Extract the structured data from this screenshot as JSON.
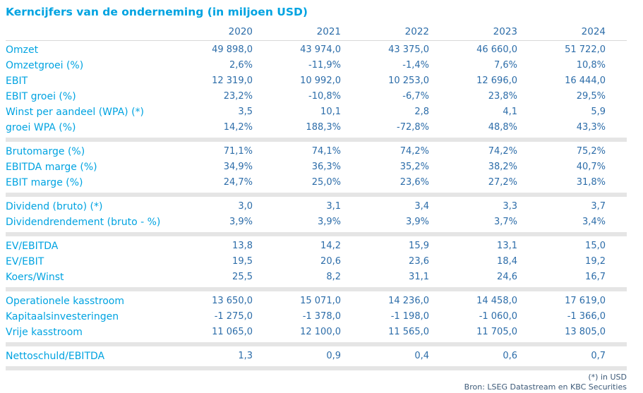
{
  "title": "Kerncijfers van de onderneming (in miljoen USD)",
  "colors": {
    "accent_cyan": "#00a3e1",
    "value_blue": "#2d6da9",
    "separator_gray": "#e5e5e5",
    "header_line_gray": "#d8d8d8",
    "footer_blue": "#3d5a78"
  },
  "table": {
    "type": "table",
    "years": [
      "2020",
      "2021",
      "2022",
      "2023",
      "2024"
    ],
    "sections": [
      {
        "rows": [
          {
            "label": "Omzet",
            "values": [
              "49 898,0",
              "43 974,0",
              "43 375,0",
              "46 660,0",
              "51 722,0"
            ]
          },
          {
            "label": "Omzetgroei (%)",
            "values": [
              "2,6%",
              "-11,9%",
              "-1,4%",
              "7,6%",
              "10,8%"
            ]
          },
          {
            "label": "EBIT",
            "values": [
              "12 319,0",
              "10 992,0",
              "10 253,0",
              "12 696,0",
              "16 444,0"
            ]
          },
          {
            "label": "EBIT groei (%)",
            "values": [
              "23,2%",
              "-10,8%",
              "-6,7%",
              "23,8%",
              "29,5%"
            ]
          },
          {
            "label": "Winst per aandeel (WPA) (*)",
            "values": [
              "3,5",
              "10,1",
              "2,8",
              "4,1",
              "5,9"
            ]
          },
          {
            "label": "groei WPA (%)",
            "values": [
              "14,2%",
              "188,3%",
              "-72,8%",
              "48,8%",
              "43,3%"
            ]
          }
        ]
      },
      {
        "rows": [
          {
            "label": "Brutomarge (%)",
            "values": [
              "71,1%",
              "74,1%",
              "74,2%",
              "74,2%",
              "75,2%"
            ]
          },
          {
            "label": "EBITDA marge (%)",
            "values": [
              "34,9%",
              "36,3%",
              "35,2%",
              "38,2%",
              "40,7%"
            ]
          },
          {
            "label": "EBIT marge (%)",
            "values": [
              "24,7%",
              "25,0%",
              "23,6%",
              "27,2%",
              "31,8%"
            ]
          }
        ]
      },
      {
        "rows": [
          {
            "label": "Dividend (bruto) (*)",
            "values": [
              "3,0",
              "3,1",
              "3,4",
              "3,3",
              "3,7"
            ]
          },
          {
            "label": "Dividendrendement (bruto - %)",
            "values": [
              "3,9%",
              "3,9%",
              "3,9%",
              "3,7%",
              "3,4%"
            ]
          }
        ]
      },
      {
        "rows": [
          {
            "label": "EV/EBITDA",
            "values": [
              "13,8",
              "14,2",
              "15,9",
              "13,1",
              "15,0"
            ]
          },
          {
            "label": "EV/EBIT",
            "values": [
              "19,5",
              "20,6",
              "23,6",
              "18,4",
              "19,2"
            ]
          },
          {
            "label": "Koers/Winst",
            "values": [
              "25,5",
              "8,2",
              "31,1",
              "24,6",
              "16,7"
            ]
          }
        ]
      },
      {
        "rows": [
          {
            "label": "Operationele kasstroom",
            "values": [
              "13 650,0",
              "15 071,0",
              "14 236,0",
              "14 458,0",
              "17 619,0"
            ]
          },
          {
            "label": "Kapitaalsinvesteringen",
            "values": [
              "-1 275,0",
              "-1 378,0",
              "-1 198,0",
              "-1 060,0",
              "-1 366,0"
            ]
          },
          {
            "label": "Vrije kasstroom",
            "values": [
              "11 065,0",
              "12 100,0",
              "11 565,0",
              "11 705,0",
              "13 805,0"
            ]
          }
        ]
      },
      {
        "rows": [
          {
            "label": "Nettoschuld/EBITDA",
            "values": [
              "1,3",
              "0,9",
              "0,4",
              "0,6",
              "0,7"
            ]
          }
        ]
      }
    ]
  },
  "footer": {
    "note": "(*) in USD",
    "source": "Bron: LSEG Datastream en KBC Securities"
  }
}
